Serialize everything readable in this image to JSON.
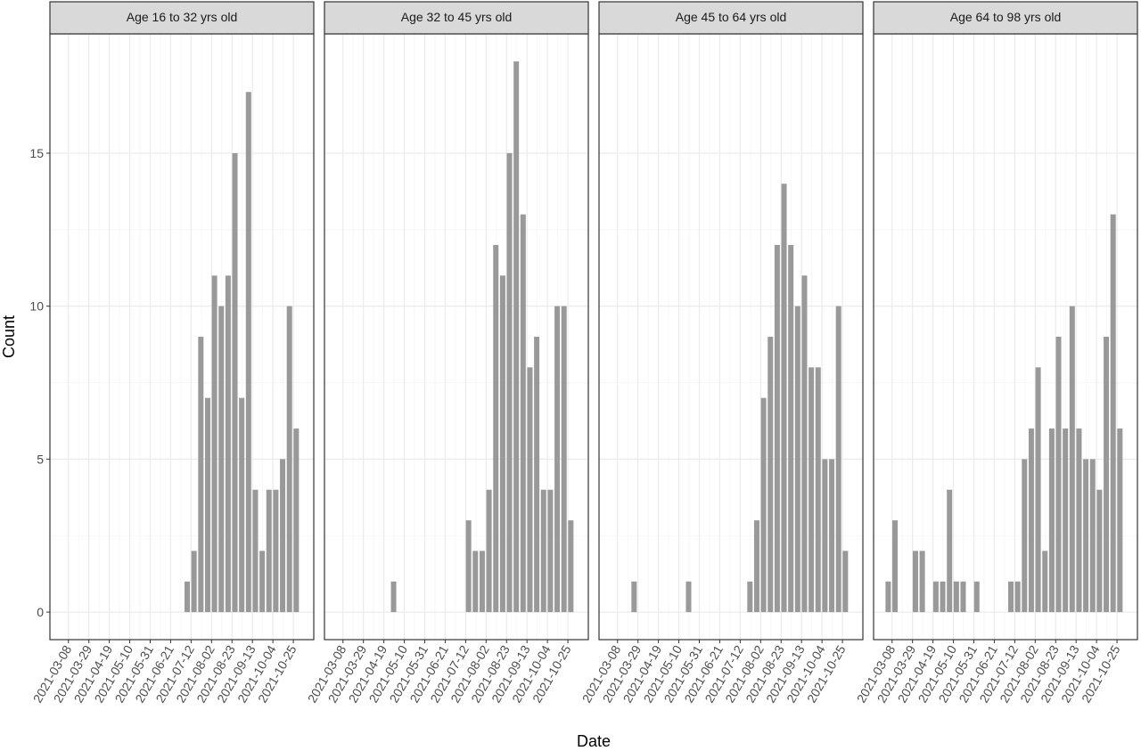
{
  "chart_data": [
    {
      "type": "bar",
      "title": "Age 16 to 32 yrs old",
      "xlabel": "Date",
      "ylabel": "Count",
      "color": "#999999",
      "grid": true,
      "x": [
        "2021-07-08",
        "2021-07-15",
        "2021-07-22",
        "2021-07-29",
        "2021-08-05",
        "2021-08-12",
        "2021-08-19",
        "2021-08-26",
        "2021-09-02",
        "2021-09-09",
        "2021-09-16",
        "2021-09-23",
        "2021-09-30",
        "2021-10-07",
        "2021-10-14",
        "2021-10-21",
        "2021-10-28"
      ],
      "values": [
        1,
        2,
        9,
        7,
        11,
        10,
        11,
        15,
        7,
        17,
        4,
        2,
        4,
        4,
        5,
        10,
        6
      ],
      "xlim": [
        "2021-02-17",
        "2021-11-15"
      ],
      "ylim": [
        -0.9,
        18.9
      ],
      "yticks": [
        0,
        5,
        10,
        15
      ],
      "xticks": [
        "2021-03-08",
        "2021-03-29",
        "2021-04-19",
        "2021-05-10",
        "2021-05-31",
        "2021-06-21",
        "2021-07-12",
        "2021-08-02",
        "2021-08-23",
        "2021-09-13",
        "2021-10-04",
        "2021-10-25"
      ]
    },
    {
      "type": "bar",
      "title": "Age 32 to 45 yrs old",
      "color": "#999999",
      "grid": true,
      "x": [
        "2021-04-29",
        "2021-07-15",
        "2021-07-22",
        "2021-07-29",
        "2021-08-05",
        "2021-08-12",
        "2021-08-19",
        "2021-08-26",
        "2021-09-02",
        "2021-09-09",
        "2021-09-16",
        "2021-09-23",
        "2021-09-30",
        "2021-10-07",
        "2021-10-14",
        "2021-10-21",
        "2021-10-28"
      ],
      "values": [
        1,
        3,
        2,
        2,
        4,
        12,
        11,
        15,
        18,
        13,
        8,
        9,
        4,
        4,
        10,
        10,
        3
      ],
      "xlim": [
        "2021-02-17",
        "2021-11-15"
      ],
      "ylim": [
        -0.9,
        18.9
      ],
      "yticks": [
        0,
        5,
        10,
        15
      ],
      "xticks": [
        "2021-03-08",
        "2021-03-29",
        "2021-04-19",
        "2021-05-10",
        "2021-05-31",
        "2021-06-21",
        "2021-07-12",
        "2021-08-02",
        "2021-08-23",
        "2021-09-13",
        "2021-10-04",
        "2021-10-25"
      ]
    },
    {
      "type": "bar",
      "title": "Age 45 to 64 yrs old",
      "color": "#999999",
      "grid": true,
      "x": [
        "2021-03-25",
        "2021-05-20",
        "2021-07-22",
        "2021-07-29",
        "2021-08-05",
        "2021-08-12",
        "2021-08-19",
        "2021-08-26",
        "2021-09-02",
        "2021-09-09",
        "2021-09-16",
        "2021-09-23",
        "2021-09-30",
        "2021-10-07",
        "2021-10-14",
        "2021-10-21",
        "2021-10-28"
      ],
      "values": [
        1,
        1,
        1,
        3,
        7,
        9,
        12,
        14,
        12,
        10,
        11,
        8,
        8,
        5,
        5,
        10,
        2
      ],
      "xlim": [
        "2021-02-17",
        "2021-11-15"
      ],
      "ylim": [
        -0.9,
        18.9
      ],
      "yticks": [
        0,
        5,
        10,
        15
      ],
      "xticks": [
        "2021-03-08",
        "2021-03-29",
        "2021-04-19",
        "2021-05-10",
        "2021-05-31",
        "2021-06-21",
        "2021-07-12",
        "2021-08-02",
        "2021-08-23",
        "2021-09-13",
        "2021-10-04",
        "2021-10-25"
      ]
    },
    {
      "type": "bar",
      "title": "Age 64 to 98 yrs old",
      "color": "#999999",
      "grid": true,
      "x": [
        "2021-03-04",
        "2021-03-11",
        "2021-04-01",
        "2021-04-08",
        "2021-04-22",
        "2021-04-29",
        "2021-05-06",
        "2021-05-13",
        "2021-05-20",
        "2021-06-03",
        "2021-07-08",
        "2021-07-15",
        "2021-07-22",
        "2021-07-29",
        "2021-08-05",
        "2021-08-12",
        "2021-08-19",
        "2021-08-26",
        "2021-09-02",
        "2021-09-09",
        "2021-09-16",
        "2021-09-23",
        "2021-09-30",
        "2021-10-07",
        "2021-10-14",
        "2021-10-21",
        "2021-10-28"
      ],
      "values": [
        1,
        3,
        2,
        2,
        1,
        1,
        4,
        1,
        1,
        1,
        1,
        1,
        5,
        6,
        8,
        2,
        6,
        9,
        6,
        10,
        6,
        5,
        5,
        4,
        9,
        13,
        6
      ],
      "xlim": [
        "2021-02-17",
        "2021-11-15"
      ],
      "ylim": [
        -0.9,
        18.9
      ],
      "yticks": [
        0,
        5,
        10,
        15
      ],
      "xticks": [
        "2021-03-08",
        "2021-03-29",
        "2021-04-19",
        "2021-05-10",
        "2021-05-31",
        "2021-06-21",
        "2021-07-12",
        "2021-08-02",
        "2021-08-23",
        "2021-09-13",
        "2021-10-04",
        "2021-10-25"
      ]
    }
  ]
}
